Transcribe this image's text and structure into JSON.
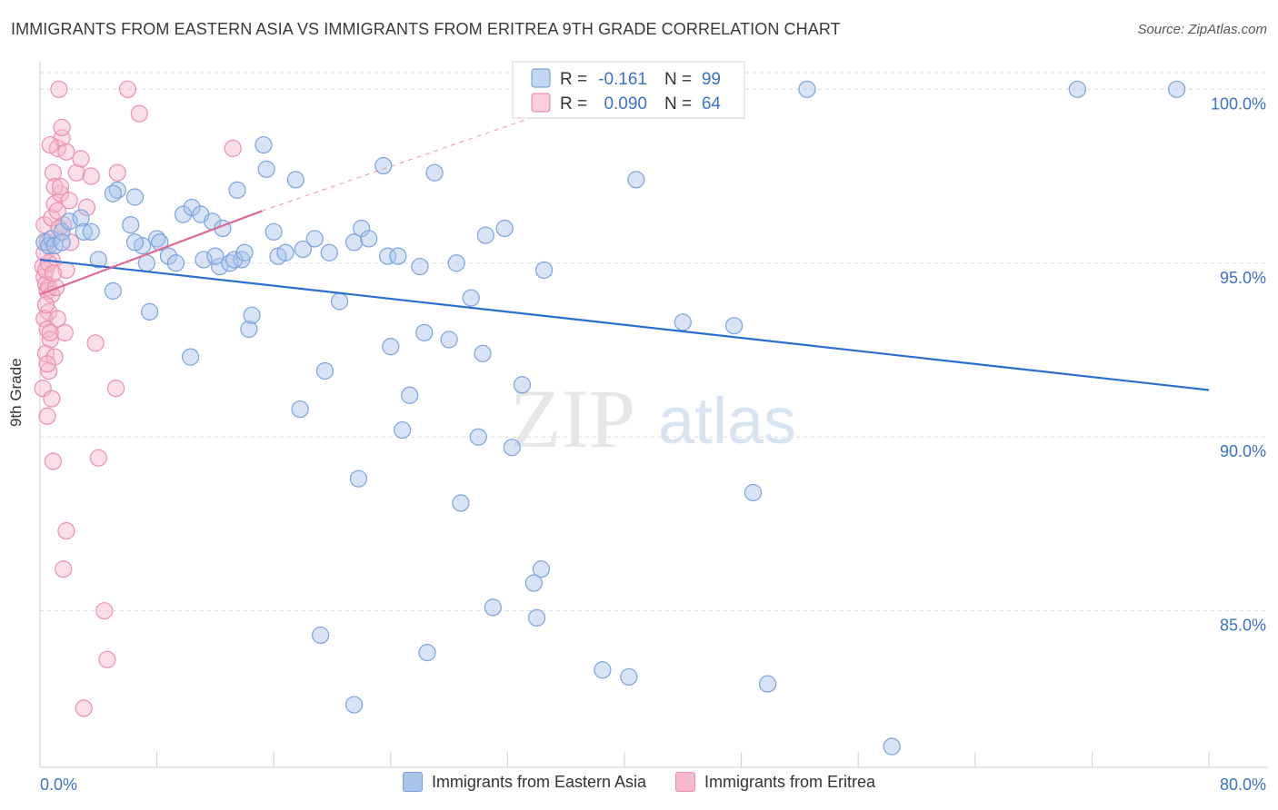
{
  "header": {
    "title": "IMMIGRANTS FROM EASTERN ASIA VS IMMIGRANTS FROM ERITREA 9TH GRADE CORRELATION CHART",
    "source": "Source: ZipAtlas.com"
  },
  "watermark": {
    "zip": "ZIP",
    "atlas": "atlas"
  },
  "colors": {
    "blue_fill": "#a9c4ea",
    "blue_stroke": "#7aa3dd",
    "blue_line": "#2a6fd0",
    "pink_fill": "#f6b9cb",
    "pink_stroke": "#ec8fad",
    "pink_line": "#e06894",
    "tick_text": "#3b72c4",
    "grid": "#d9d9d9"
  },
  "chart_data": {
    "type": "scatter",
    "title": "IMMIGRANTS FROM EASTERN ASIA VS IMMIGRANTS FROM ERITREA 9TH GRADE CORRELATION CHART",
    "xlabel": "",
    "ylabel": "9th Grade",
    "xlim": [
      0,
      80
    ],
    "ylim": [
      80.5,
      101.0
    ],
    "x_tick_labels": [
      "0.0%",
      "80.0%"
    ],
    "y_ticks": [
      85,
      90,
      95,
      100
    ],
    "y_tick_labels": [
      "85.0%",
      "90.0%",
      "95.0%",
      "100.0%"
    ],
    "grid": true,
    "legend_position": "bottom",
    "stats": [
      {
        "r_label": "R =",
        "r_value": "-0.161",
        "n_label": "N =",
        "n_value": "99"
      },
      {
        "r_label": "R =",
        "r_value": "0.090",
        "n_label": "N =",
        "n_value": "64"
      }
    ],
    "series": [
      {
        "name": "Immigrants from Eastern Asia",
        "trend": {
          "x": [
            0,
            80
          ],
          "y": [
            95.1,
            91.35
          ]
        },
        "points": [
          [
            0.3,
            95.6
          ],
          [
            0.6,
            95.5
          ],
          [
            0.8,
            95.7
          ],
          [
            1.0,
            95.5
          ],
          [
            1.5,
            95.9
          ],
          [
            2.0,
            96.2
          ],
          [
            2.8,
            96.3
          ],
          [
            3.0,
            95.9
          ],
          [
            3.5,
            95.9
          ],
          [
            4.0,
            95.1
          ],
          [
            5.0,
            94.2
          ],
          [
            5.3,
            97.1
          ],
          [
            6.2,
            96.1
          ],
          [
            6.5,
            96.9
          ],
          [
            7.0,
            95.5
          ],
          [
            7.3,
            95.0
          ],
          [
            7.5,
            93.6
          ],
          [
            8.0,
            95.7
          ],
          [
            8.2,
            95.6
          ],
          [
            8.8,
            95.2
          ],
          [
            9.3,
            95.0
          ],
          [
            10.3,
            92.3
          ],
          [
            9.8,
            96.4
          ],
          [
            10.4,
            96.6
          ],
          [
            11.0,
            96.4
          ],
          [
            11.2,
            95.1
          ],
          [
            11.8,
            96.2
          ],
          [
            12.3,
            94.9
          ],
          [
            12.5,
            96.0
          ],
          [
            13.0,
            95.0
          ],
          [
            13.8,
            95.1
          ],
          [
            13.3,
            95.1
          ],
          [
            13.5,
            97.1
          ],
          [
            14.3,
            93.1
          ],
          [
            14.5,
            93.5
          ],
          [
            15.3,
            98.4
          ],
          [
            15.5,
            97.7
          ],
          [
            16.0,
            95.9
          ],
          [
            16.3,
            95.2
          ],
          [
            16.8,
            95.3
          ],
          [
            17.5,
            97.4
          ],
          [
            17.8,
            90.8
          ],
          [
            18.0,
            95.4
          ],
          [
            18.8,
            95.7
          ],
          [
            19.5,
            91.9
          ],
          [
            19.8,
            95.3
          ],
          [
            20.5,
            93.9
          ],
          [
            21.8,
            88.8
          ],
          [
            21.5,
            95.6
          ],
          [
            22.0,
            96.0
          ],
          [
            22.5,
            95.7
          ],
          [
            23.8,
            95.2
          ],
          [
            23.5,
            97.8
          ],
          [
            24.0,
            92.6
          ],
          [
            24.5,
            95.2
          ],
          [
            24.8,
            90.2
          ],
          [
            25.3,
            91.2
          ],
          [
            26.0,
            94.9
          ],
          [
            26.3,
            93.0
          ],
          [
            26.5,
            83.8
          ],
          [
            27.0,
            97.6
          ],
          [
            28.0,
            92.8
          ],
          [
            28.5,
            95.0
          ],
          [
            28.8,
            88.1
          ],
          [
            29.5,
            94.0
          ],
          [
            30.0,
            90.0
          ],
          [
            30.3,
            92.4
          ],
          [
            30.5,
            95.8
          ],
          [
            31.0,
            85.1
          ],
          [
            31.8,
            96.0
          ],
          [
            32.3,
            89.7
          ],
          [
            33.0,
            91.5
          ],
          [
            33.8,
            85.8
          ],
          [
            34.0,
            84.8
          ],
          [
            34.3,
            86.2
          ],
          [
            34.5,
            94.8
          ],
          [
            37.0,
            100.0
          ],
          [
            38.5,
            83.3
          ],
          [
            40.0,
            100.0
          ],
          [
            40.3,
            83.1
          ],
          [
            40.8,
            97.4
          ],
          [
            41.5,
            100.0
          ],
          [
            43.0,
            100.0
          ],
          [
            44.0,
            93.3
          ],
          [
            45.5,
            100.0
          ],
          [
            47.5,
            93.2
          ],
          [
            48.8,
            88.4
          ],
          [
            49.8,
            82.9
          ],
          [
            52.5,
            100.0
          ],
          [
            58.3,
            81.1
          ],
          [
            71.0,
            100.0
          ],
          [
            77.8,
            100.0
          ],
          [
            1.5,
            95.6
          ],
          [
            5.0,
            97.0
          ],
          [
            14.0,
            95.3
          ],
          [
            12.0,
            95.2
          ],
          [
            6.5,
            95.6
          ],
          [
            19.2,
            84.3
          ],
          [
            21.5,
            82.3
          ]
        ]
      },
      {
        "name": "Immigrants from Eritrea",
        "trend": {
          "x": [
            0,
            15.2
          ],
          "y": [
            94.1,
            96.5
          ]
        },
        "trend_dashed": {
          "x": [
            15.2,
            42.0
          ],
          "y": [
            96.5,
            100.4
          ]
        },
        "points": [
          [
            0.2,
            94.9
          ],
          [
            0.3,
            94.6
          ],
          [
            0.4,
            94.4
          ],
          [
            0.5,
            94.2
          ],
          [
            0.6,
            94.3
          ],
          [
            0.3,
            96.1
          ],
          [
            0.5,
            95.6
          ],
          [
            0.8,
            95.1
          ],
          [
            0.4,
            94.8
          ],
          [
            0.6,
            93.6
          ],
          [
            0.3,
            93.4
          ],
          [
            0.5,
            93.1
          ],
          [
            0.7,
            92.8
          ],
          [
            0.4,
            92.4
          ],
          [
            0.6,
            91.9
          ],
          [
            0.2,
            91.4
          ],
          [
            0.8,
            91.1
          ],
          [
            0.5,
            90.6
          ],
          [
            0.9,
            89.3
          ],
          [
            1.0,
            92.3
          ],
          [
            1.2,
            93.4
          ],
          [
            0.8,
            96.3
          ],
          [
            1.0,
            96.7
          ],
          [
            1.4,
            97.0
          ],
          [
            0.9,
            97.6
          ],
          [
            1.2,
            98.3
          ],
          [
            1.5,
            98.6
          ],
          [
            1.8,
            98.2
          ],
          [
            1.5,
            98.9
          ],
          [
            1.3,
            100.0
          ],
          [
            1.0,
            97.2
          ],
          [
            0.7,
            98.4
          ],
          [
            1.4,
            97.2
          ],
          [
            1.6,
            96.1
          ],
          [
            2.1,
            95.6
          ],
          [
            1.8,
            94.8
          ],
          [
            2.0,
            96.8
          ],
          [
            2.5,
            97.6
          ],
          [
            2.8,
            98.0
          ],
          [
            3.2,
            96.6
          ],
          [
            3.5,
            97.5
          ],
          [
            3.8,
            92.7
          ],
          [
            4.0,
            89.4
          ],
          [
            4.4,
            85.0
          ],
          [
            4.6,
            83.6
          ],
          [
            3.0,
            82.2
          ],
          [
            1.8,
            87.3
          ],
          [
            1.6,
            86.2
          ],
          [
            5.2,
            91.4
          ],
          [
            5.3,
            97.6
          ],
          [
            6.0,
            100.0
          ],
          [
            6.8,
            99.3
          ],
          [
            13.2,
            98.3
          ],
          [
            0.8,
            94.1
          ],
          [
            0.4,
            93.8
          ],
          [
            0.6,
            95.0
          ],
          [
            0.3,
            95.3
          ],
          [
            1.1,
            94.3
          ],
          [
            1.3,
            96.0
          ],
          [
            0.7,
            93.0
          ],
          [
            0.9,
            94.7
          ],
          [
            1.7,
            93.0
          ],
          [
            0.5,
            92.1
          ],
          [
            1.2,
            96.5
          ]
        ]
      }
    ]
  },
  "legend": {
    "items": [
      {
        "label": "Immigrants from Eastern Asia"
      },
      {
        "label": "Immigrants from Eritrea"
      }
    ]
  }
}
